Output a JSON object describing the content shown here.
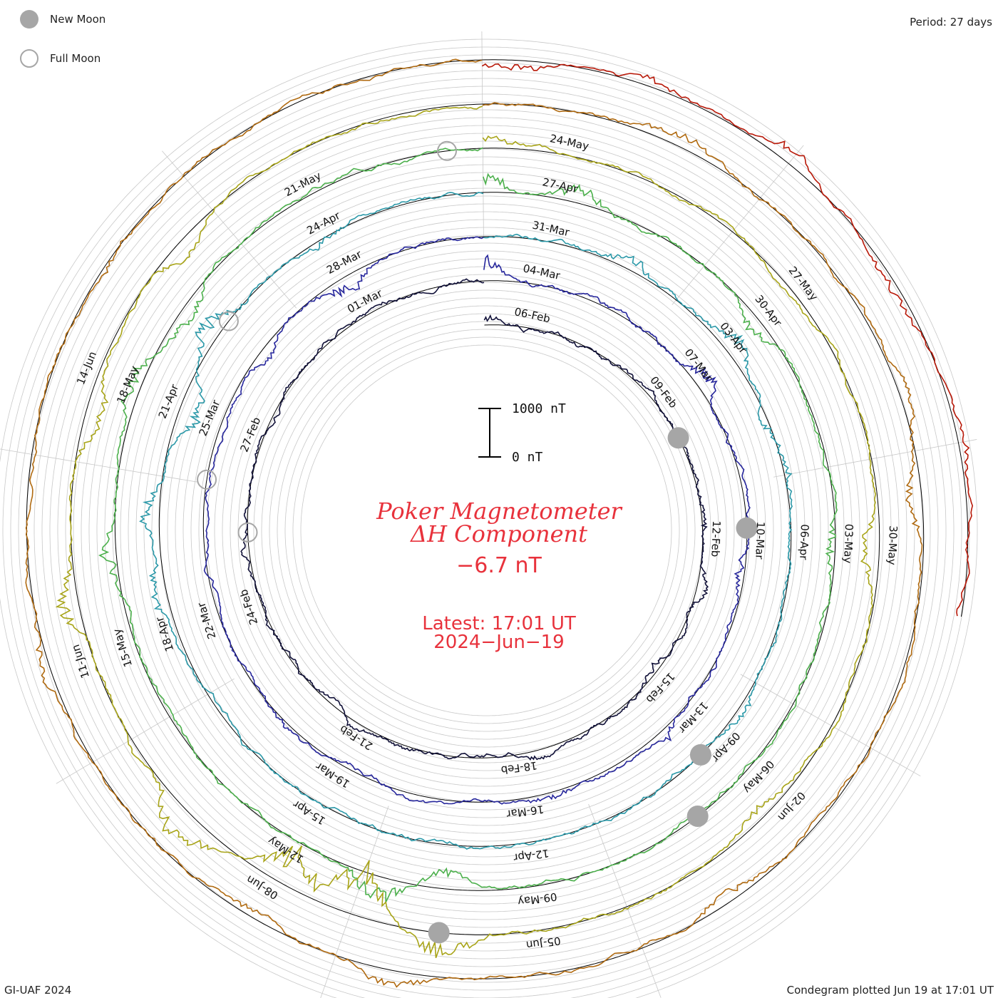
{
  "legend": {
    "new_moon_label": "New Moon",
    "full_moon_label": "Full Moon"
  },
  "period_label": "Period: 27 days",
  "footer": {
    "left": "GI-UAF 2024",
    "right": "Condegram plotted Jun 19 at 17:01 UT"
  },
  "center": {
    "title_line1": "Poker Magnetometer",
    "title_line2": "ΔH Component",
    "current_value": "−6.7 nT",
    "latest_time": "Latest: 17:01 UT",
    "latest_date": "2024−Jun−19"
  },
  "scale_bar": {
    "top_label": "1000 nT",
    "bottom_label": "0 nT"
  },
  "colors": {
    "title_red": "#e8323c",
    "grid": "#c8c8c8",
    "moon": "#a6a6a6",
    "rotations": [
      "#101038",
      "#26269c",
      "#2a98a8",
      "#4cb04c",
      "#a8a418",
      "#b06a10",
      "#b81808"
    ]
  },
  "chart_data": {
    "type": "line",
    "title": "Poker Magnetometer ΔH Component",
    "subtitle": "Condegram, Period: 27 days",
    "xlabel": "",
    "ylabel": "",
    "units": "nT",
    "period_days": 27,
    "scale_bar_nT": [
      0,
      1000
    ],
    "grid": true,
    "series": [
      {
        "rotation": 1,
        "color": "#101038",
        "date_labels": [
          "06-Feb",
          "09-Feb",
          "12-Feb",
          "15-Feb",
          "18-Feb",
          "21-Feb",
          "24-Feb",
          "27-Feb",
          "01-Mar"
        ],
        "disturbances": [
          {
            "day": 0.0,
            "nT": -150
          },
          {
            "day": 6.5,
            "nT": -130
          },
          {
            "day": 8.0,
            "nT": -150
          },
          {
            "day": 9.8,
            "nT": 90
          },
          {
            "day": 12.5,
            "nT": -80
          },
          {
            "day": 15.0,
            "nT": -60
          },
          {
            "day": 16.0,
            "nT": -70
          },
          {
            "day": 20.0,
            "nT": -90
          },
          {
            "day": 25.0,
            "nT": -40
          }
        ]
      },
      {
        "rotation": 2,
        "color": "#26269c",
        "date_labels": [
          "04-Mar",
          "07-Mar",
          "10-Mar",
          "13-Mar",
          "16-Mar",
          "19-Mar",
          "22-Mar",
          "25-Mar",
          "28-Mar"
        ],
        "disturbances": [
          {
            "day": 0.0,
            "nT": -400
          },
          {
            "day": 4.2,
            "nT": -300
          },
          {
            "day": 7.5,
            "nT": 120
          },
          {
            "day": 10.5,
            "nT": -180
          },
          {
            "day": 12.5,
            "nT": -110
          },
          {
            "day": 17.0,
            "nT": -80
          },
          {
            "day": 23.2,
            "nT": 140
          },
          {
            "day": 24.8,
            "nT": 280
          }
        ]
      },
      {
        "rotation": 3,
        "color": "#2a98a8",
        "date_labels": [
          "31-Mar",
          "03-Apr",
          "06-Apr",
          "09-Apr",
          "12-Apr",
          "15-Apr",
          "18-Apr",
          "21-Apr",
          "24-Apr"
        ],
        "disturbances": [
          {
            "day": 2.2,
            "nT": -250
          },
          {
            "day": 4.0,
            "nT": -300
          },
          {
            "day": 5.3,
            "nT": 180
          },
          {
            "day": 6.0,
            "nT": -120
          },
          {
            "day": 9.5,
            "nT": -160
          },
          {
            "day": 19.5,
            "nT": -200
          },
          {
            "day": 20.5,
            "nT": -260
          },
          {
            "day": 22.0,
            "nT": 330
          },
          {
            "day": 23.0,
            "nT": -380
          },
          {
            "day": 24.8,
            "nT": 120
          }
        ]
      },
      {
        "rotation": 4,
        "color": "#4cb04c",
        "date_labels": [
          "27-Apr",
          "30-Apr",
          "03-May",
          "06-May",
          "09-May",
          "12-May",
          "15-May",
          "18-May",
          "21-May"
        ],
        "disturbances": [
          {
            "day": 0.0,
            "nT": -320
          },
          {
            "day": 1.2,
            "nT": -270
          },
          {
            "day": 4.0,
            "nT": 240
          },
          {
            "day": 7.0,
            "nT": 200
          },
          {
            "day": 14.0,
            "nT": 280
          },
          {
            "day": 14.8,
            "nT": -450
          },
          {
            "day": 20.0,
            "nT": -300
          },
          {
            "day": 22.0,
            "nT": -260
          },
          {
            "day": 23.0,
            "nT": 260
          }
        ]
      },
      {
        "rotation": 5,
        "color": "#a8a418",
        "date_labels": [
          "24-May",
          "27-May",
          "30-May",
          "02-Jun",
          "05-Jun",
          "08-Jun",
          "11-Jun",
          "14-Jun"
        ],
        "disturbances": [
          {
            "day": 0.0,
            "nT": -260
          },
          {
            "day": 7.0,
            "nT": 240
          },
          {
            "day": 10.2,
            "nT": 180
          },
          {
            "day": 14.0,
            "nT": -420
          },
          {
            "day": 15.0,
            "nT": 950
          },
          {
            "day": 15.8,
            "nT": 700
          },
          {
            "day": 17.0,
            "nT": -500
          },
          {
            "day": 19.5,
            "nT": -380
          },
          {
            "day": 21.5,
            "nT": 280
          },
          {
            "day": 23.5,
            "nT": 220
          }
        ]
      },
      {
        "rotation": 6,
        "color": "#b06a10",
        "date_labels": [],
        "disturbances": [
          {
            "day": 2.0,
            "nT": -180
          },
          {
            "day": 5.5,
            "nT": -140
          },
          {
            "day": 6.5,
            "nT": 220
          },
          {
            "day": 11.0,
            "nT": 160
          },
          {
            "day": 14.5,
            "nT": -240
          },
          {
            "day": 16.0,
            "nT": 130
          },
          {
            "day": 19.0,
            "nT": -180
          },
          {
            "day": 23.0,
            "nT": 130
          }
        ]
      },
      {
        "rotation": 7,
        "color": "#b81808",
        "date_labels": [],
        "disturbances": [
          {
            "day": 0.3,
            "nT": 150
          },
          {
            "day": 1.5,
            "nT": -120
          },
          {
            "day": 3.0,
            "nT": -180
          },
          {
            "day": 4.5,
            "nT": 120
          },
          {
            "day": 6.0,
            "nT": -140
          },
          {
            "day": 8.0,
            "nT": 160
          }
        ]
      }
    ],
    "new_moons": [
      "09-Feb",
      "10-Mar",
      "08-Apr",
      "08-May",
      "06-Jun"
    ],
    "full_moons": [
      "24-Feb",
      "25-Mar",
      "24-Apr",
      "23-May"
    ]
  }
}
